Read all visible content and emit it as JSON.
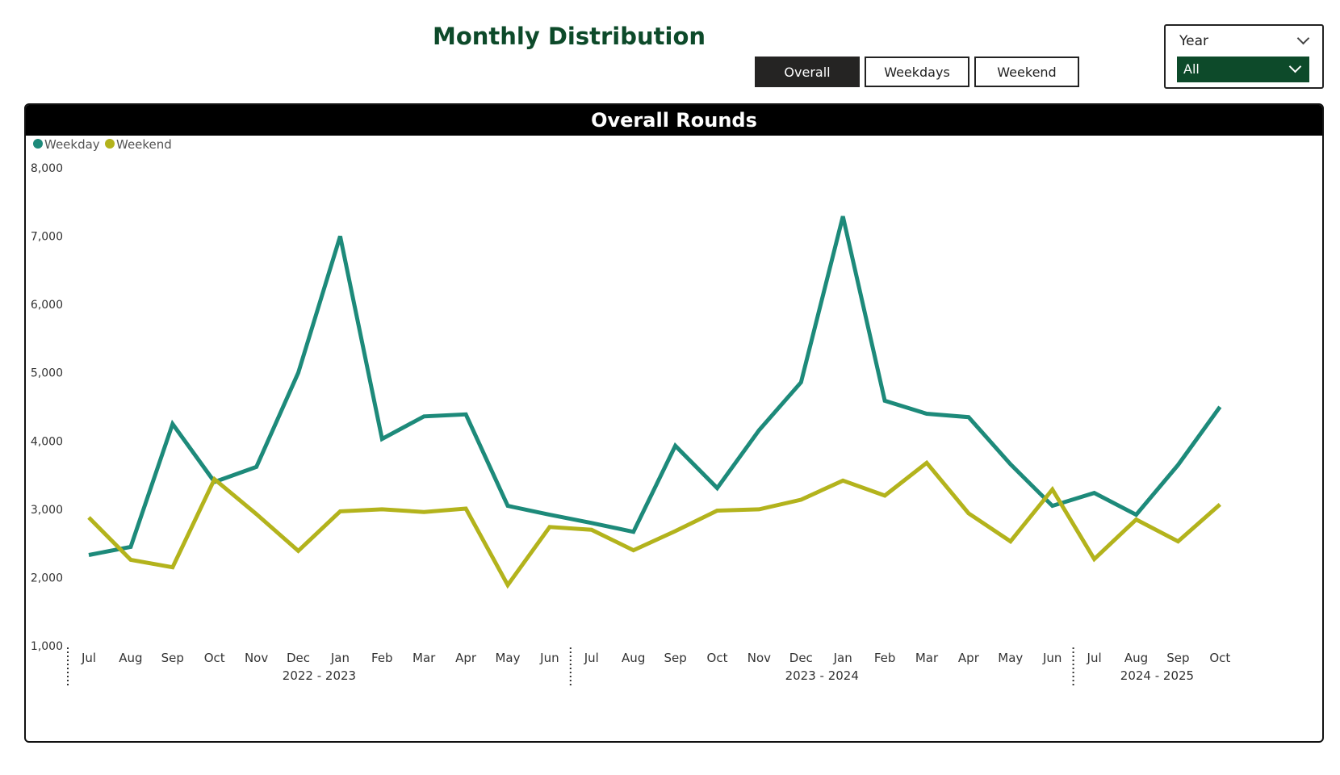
{
  "page": {
    "title": "Monthly Distribution"
  },
  "buttons": [
    {
      "label": "Overall",
      "active": true
    },
    {
      "label": "Weekdays",
      "active": false
    },
    {
      "label": "Weekend",
      "active": false
    }
  ],
  "slicer": {
    "label": "Year",
    "value": "All"
  },
  "chart_data": {
    "type": "line",
    "title": "Overall Rounds",
    "legend_position": "top-left",
    "grid": false,
    "ylim": [
      1000,
      8000
    ],
    "yticks": [
      "1,000",
      "2,000",
      "3,000",
      "4,000",
      "5,000",
      "6,000",
      "7,000",
      "8,000"
    ],
    "ytick_values": [
      1000,
      2000,
      3000,
      4000,
      5000,
      6000,
      7000,
      8000
    ],
    "categories": [
      "Jul",
      "Aug",
      "Sep",
      "Oct",
      "Nov",
      "Dec",
      "Jan",
      "Feb",
      "Mar",
      "Apr",
      "May",
      "Jun",
      "Jul",
      "Aug",
      "Sep",
      "Oct",
      "Nov",
      "Dec",
      "Jan",
      "Feb",
      "Mar",
      "Apr",
      "May",
      "Jun",
      "Jul",
      "Aug",
      "Sep",
      "Oct"
    ],
    "groups": [
      {
        "label": "2022 - 2023",
        "count": 12
      },
      {
        "label": "2023 - 2024",
        "count": 12
      },
      {
        "label": "2024 - 2025",
        "count": 4
      }
    ],
    "series": [
      {
        "name": "Weekday",
        "color": "#1d8a7a",
        "values": [
          2330,
          2450,
          4250,
          3400,
          3620,
          5000,
          7000,
          4030,
          4360,
          4390,
          3050,
          2920,
          2800,
          2670,
          3930,
          3310,
          4160,
          4860,
          7290,
          4590,
          4400,
          4350,
          3660,
          3050,
          3240,
          2920,
          3650,
          4500
        ]
      },
      {
        "name": "Weekend",
        "color": "#b3b31c",
        "values": [
          2880,
          2260,
          2150,
          3440,
          2930,
          2390,
          2970,
          3000,
          2960,
          3010,
          1890,
          2740,
          2700,
          2400,
          2680,
          2980,
          3000,
          3140,
          3420,
          3200,
          3680,
          2940,
          2530,
          3290,
          2270,
          2850,
          2530,
          3070
        ]
      }
    ]
  }
}
